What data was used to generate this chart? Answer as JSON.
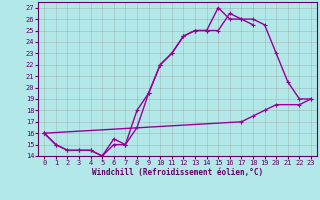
{
  "xlabel": "Windchill (Refroidissement éolien,°C)",
  "background_color": "#b2e8e8",
  "grid_color": "#999999",
  "line_color": "#990099",
  "xlim": [
    -0.5,
    23.5
  ],
  "ylim": [
    14,
    27.5
  ],
  "xticks": [
    0,
    1,
    2,
    3,
    4,
    5,
    6,
    7,
    8,
    9,
    10,
    11,
    12,
    13,
    14,
    15,
    16,
    17,
    18,
    19,
    20,
    21,
    22,
    23
  ],
  "yticks": [
    14,
    15,
    16,
    17,
    18,
    19,
    20,
    21,
    22,
    23,
    24,
    25,
    26,
    27
  ],
  "line1_x": [
    0,
    1,
    2,
    3,
    4,
    5,
    6,
    7,
    8,
    9,
    10,
    11,
    12,
    13,
    14,
    15,
    16,
    17,
    18,
    19,
    20,
    21,
    22,
    23
  ],
  "line1_y": [
    16,
    15,
    14.5,
    14.5,
    14.5,
    14,
    15,
    15,
    16.5,
    19.5,
    22,
    23,
    24.5,
    25,
    25,
    25,
    26.5,
    26,
    26,
    25.5,
    23,
    20.5,
    19,
    19
  ],
  "line2_x": [
    0,
    1,
    2,
    3,
    4,
    5,
    6,
    7,
    8,
    9,
    10,
    11,
    12,
    13,
    14,
    15,
    16,
    17,
    18,
    19,
    20,
    21,
    22,
    23
  ],
  "line2_y": [
    16,
    15,
    14.5,
    14.5,
    14.5,
    14,
    15.5,
    15,
    18,
    19.5,
    22,
    23,
    24.5,
    25,
    25,
    27,
    26,
    26,
    25.5,
    null,
    null,
    null,
    null,
    null
  ],
  "line3_x": [
    0,
    17,
    18,
    19,
    20,
    22,
    23
  ],
  "line3_y": [
    16,
    17,
    17.5,
    18,
    18.5,
    18.5,
    19
  ],
  "markersize": 2.5,
  "linewidth": 1.0,
  "tick_fontsize": 5,
  "label_fontsize": 5.5
}
